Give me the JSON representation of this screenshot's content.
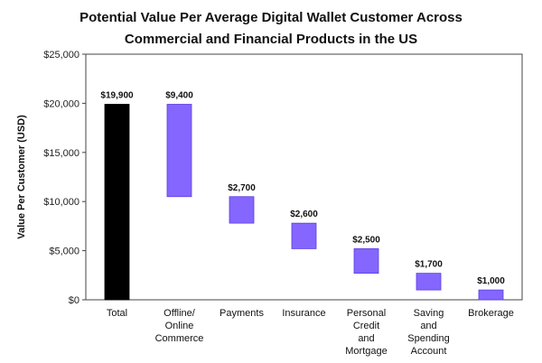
{
  "chart_data": {
    "type": "bar",
    "title_line1": "Potential Value Per Average Digital Wallet Customer Across",
    "title_line2": "Commercial and Financial Products in the US",
    "ylabel": "Value Per Customer (USD)",
    "xlabel": "",
    "ylim": [
      0,
      25000
    ],
    "yticks": [
      0,
      5000,
      10000,
      15000,
      20000,
      25000
    ],
    "ytick_labels": [
      "$0",
      "$5,000",
      "$10,000",
      "$15,000",
      "$20,000",
      "$25,000"
    ],
    "grid": false,
    "legend": "none",
    "categories": [
      [
        "Total"
      ],
      [
        "Offline/",
        "Online",
        "Commerce"
      ],
      [
        "Payments"
      ],
      [
        "Insurance"
      ],
      [
        "Personal",
        "Credit",
        "and",
        "Mortgage"
      ],
      [
        "Saving",
        "and",
        "Spending",
        "Account"
      ],
      [
        "Brokerage"
      ]
    ],
    "bars": [
      {
        "start": 0,
        "end": 19900,
        "label": "$19,900",
        "kind": "total"
      },
      {
        "start": 10500,
        "end": 19900,
        "label": "$9,400",
        "kind": "component"
      },
      {
        "start": 7800,
        "end": 10500,
        "label": "$2,700",
        "kind": "component"
      },
      {
        "start": 5200,
        "end": 7800,
        "label": "$2,600",
        "kind": "component"
      },
      {
        "start": 2700,
        "end": 5200,
        "label": "$2,500",
        "kind": "component"
      },
      {
        "start": 1000,
        "end": 2700,
        "label": "$1,700",
        "kind": "component"
      },
      {
        "start": 0,
        "end": 1000,
        "label": "$1,000",
        "kind": "component"
      }
    ],
    "colors": {
      "total": "#000000",
      "component": "#8566ff",
      "component_stroke": "#5a3fe0",
      "axis": "#444444"
    }
  }
}
